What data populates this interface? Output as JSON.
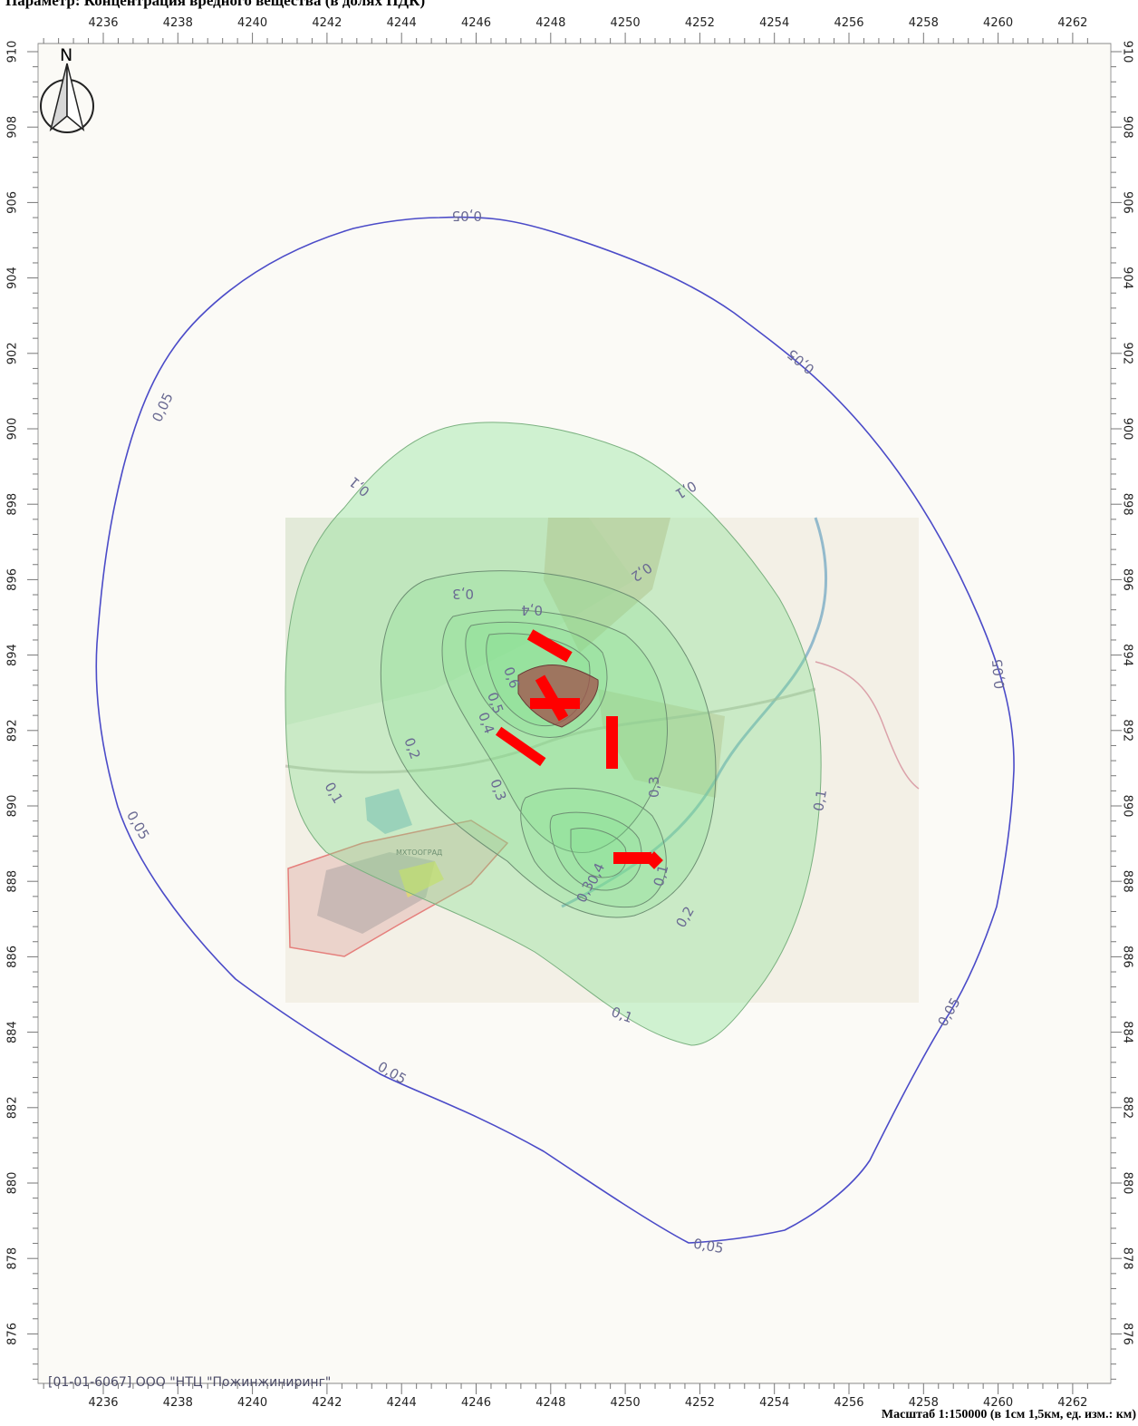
{
  "title": "Параметр: Концентрация вредного вещества (в долях ПДК)",
  "scale": "Масштаб 1:150000 (в 1см 1,5км, ед. изм.: км)",
  "company": "[01-01-6067] ООО \"НТЦ \"Пожинжиниринг\"",
  "north_label": "N",
  "axes": {
    "x_ticks": [
      "4236",
      "4238",
      "4240",
      "4242",
      "4244",
      "4246",
      "4248",
      "4250",
      "4252",
      "4254",
      "4256",
      "4258",
      "4260",
      "4262"
    ],
    "y_ticks": [
      "910",
      "908",
      "906",
      "904",
      "902",
      "900",
      "898",
      "896",
      "894",
      "892",
      "890",
      "888",
      "886",
      "884",
      "882",
      "880",
      "878",
      "876"
    ]
  },
  "colors": {
    "outer_isoline": "#4b4bc8",
    "fill_zone": "#7ee08a",
    "inner_isoline": "#5f7a66",
    "sources": "#ff0000",
    "map_background": "#fbfaf6",
    "label": "#6a6a92"
  },
  "isolines": {
    "label_005": "0,05",
    "label_01": "0,1",
    "label_02": "0,2",
    "label_03": "0,3",
    "label_04": "0,4",
    "label_05": "0,5",
    "label_06": "0,6"
  },
  "areas": {
    "settlement": "МХТООГРАД"
  }
}
